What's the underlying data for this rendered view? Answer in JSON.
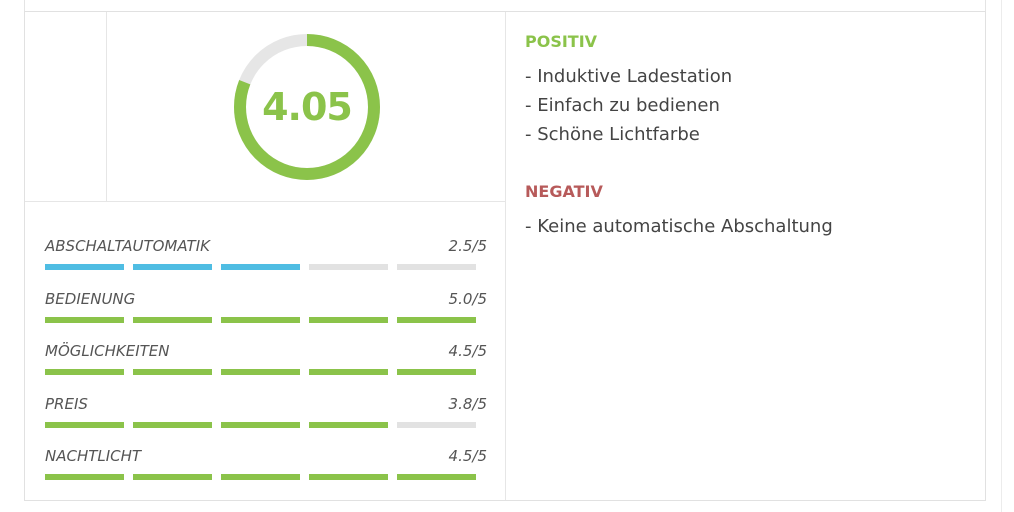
{
  "score": {
    "value": "4.05",
    "fraction": 0.81,
    "color": "#8bc34a",
    "track_color": "#e6e6e6"
  },
  "criteria": [
    {
      "label": "ABSCHALTAUTOMATIK",
      "score": "2.5/5",
      "level": 2.5,
      "color": "#4fbde3"
    },
    {
      "label": "BEDIENUNG",
      "score": "5.0/5",
      "level": 5.0,
      "color": "#8bc34a"
    },
    {
      "label": "MÖGLICHKEITEN",
      "score": "4.5/5",
      "level": 4.5,
      "color": "#8bc34a"
    },
    {
      "label": "PREIS",
      "score": "3.8/5",
      "level": 3.8,
      "color": "#8bc34a"
    },
    {
      "label": "NACHTLICHT",
      "score": "4.5/5",
      "level": 4.5,
      "color": "#8bc34a"
    }
  ],
  "pros": {
    "heading": "POSITIV",
    "items": [
      "- Induktive Ladestation",
      "- Einfach zu bedienen",
      "- Schöne Lichtfarbe"
    ]
  },
  "cons": {
    "heading": "NEGATIV",
    "items": [
      "- Keine automatische Abschaltung"
    ]
  }
}
